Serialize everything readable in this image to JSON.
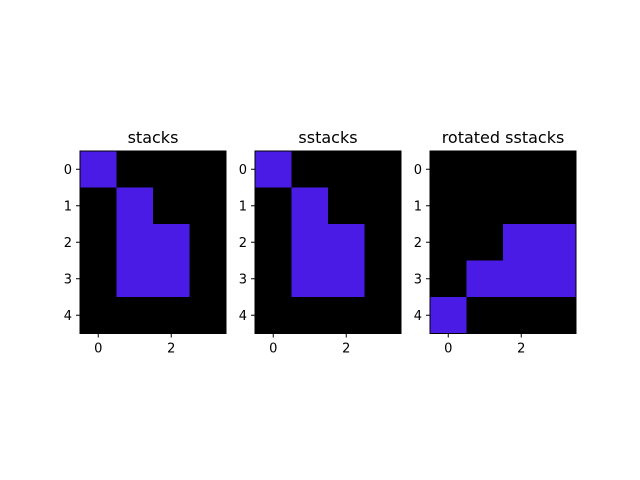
{
  "chart_data": [
    {
      "type": "heatmap",
      "title": "stacks",
      "x_ticks": [
        0,
        2
      ],
      "y_ticks": [
        0,
        1,
        2,
        3,
        4
      ],
      "xlim": [
        -0.5,
        3.5
      ],
      "ylim": [
        4.5,
        -0.5
      ],
      "grid": false,
      "colors": {
        "0": "#000000",
        "1": "#4b1be6"
      },
      "z": [
        [
          1,
          0,
          0,
          0
        ],
        [
          0,
          1,
          0,
          0
        ],
        [
          0,
          1,
          1,
          0
        ],
        [
          0,
          1,
          1,
          0
        ],
        [
          0,
          0,
          0,
          0
        ]
      ]
    },
    {
      "type": "heatmap",
      "title": "sstacks",
      "x_ticks": [
        0,
        2
      ],
      "y_ticks": [
        0,
        1,
        2,
        3,
        4
      ],
      "xlim": [
        -0.5,
        3.5
      ],
      "ylim": [
        4.5,
        -0.5
      ],
      "grid": false,
      "colors": {
        "0": "#000000",
        "1": "#4b1be6"
      },
      "z": [
        [
          1,
          0,
          0,
          0
        ],
        [
          0,
          1,
          0,
          0
        ],
        [
          0,
          1,
          1,
          0
        ],
        [
          0,
          1,
          1,
          0
        ],
        [
          0,
          0,
          0,
          0
        ]
      ]
    },
    {
      "type": "heatmap",
      "title": "rotated sstacks",
      "x_ticks": [
        0,
        2
      ],
      "y_ticks": [
        0,
        1,
        2,
        3,
        4
      ],
      "xlim": [
        -0.5,
        3.5
      ],
      "ylim": [
        4.5,
        -0.5
      ],
      "grid": false,
      "colors": {
        "0": "#000000",
        "1": "#4b1be6"
      },
      "z": [
        [
          0,
          0,
          0,
          0
        ],
        [
          0,
          0,
          0,
          0
        ],
        [
          0,
          0,
          1,
          1
        ],
        [
          0,
          1,
          1,
          1
        ],
        [
          1,
          0,
          0,
          0
        ]
      ]
    }
  ]
}
